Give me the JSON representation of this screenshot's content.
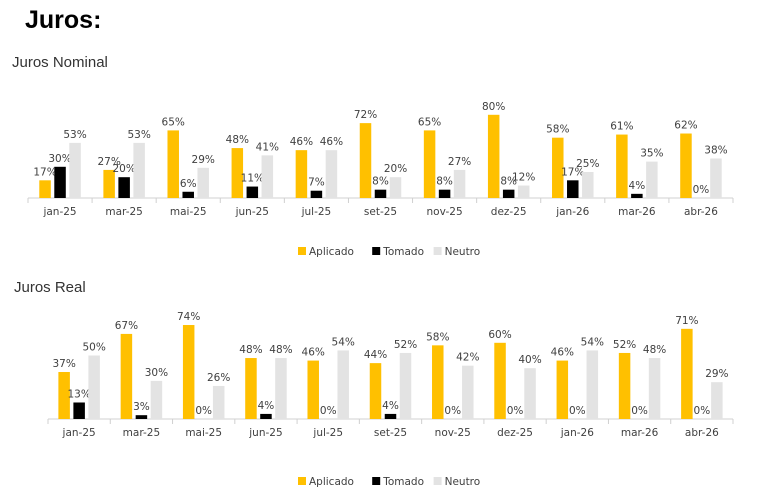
{
  "page_title": "Juros:",
  "colors": {
    "Aplicado": "#FFC000",
    "Tomado": "#000000",
    "Neutro": "#E3E3E3"
  },
  "chart_data": [
    {
      "type": "bar",
      "title": "Juros Nominal",
      "categories": [
        "jan-25",
        "mar-25",
        "mai-25",
        "jun-25",
        "jul-25",
        "set-25",
        "nov-25",
        "dez-25",
        "jan-26",
        "mar-26",
        "abr-26"
      ],
      "series": [
        {
          "name": "Aplicado",
          "values": [
            17,
            27,
            65,
            48,
            46,
            72,
            65,
            80,
            58,
            61,
            62
          ]
        },
        {
          "name": "Tomado",
          "values": [
            30,
            20,
            6,
            11,
            7,
            8,
            8,
            8,
            17,
            4,
            0
          ]
        },
        {
          "name": "Neutro",
          "values": [
            53,
            53,
            29,
            41,
            46,
            20,
            27,
            12,
            25,
            35,
            38
          ]
        }
      ],
      "unit": "%",
      "legend": "bottom-center",
      "grid": false
    },
    {
      "type": "bar",
      "title": "Juros Real",
      "categories": [
        "jan-25",
        "mar-25",
        "mai-25",
        "jun-25",
        "jul-25",
        "set-25",
        "nov-25",
        "dez-25",
        "jan-26",
        "mar-26",
        "abr-26"
      ],
      "series": [
        {
          "name": "Aplicado",
          "values": [
            37,
            67,
            74,
            48,
            46,
            44,
            58,
            60,
            46,
            52,
            71
          ]
        },
        {
          "name": "Tomado",
          "values": [
            13,
            3,
            0,
            4,
            0,
            4,
            0,
            0,
            0,
            0,
            0
          ]
        },
        {
          "name": "Neutro",
          "values": [
            50,
            30,
            26,
            48,
            54,
            52,
            42,
            40,
            54,
            48,
            29
          ]
        }
      ],
      "unit": "%",
      "legend": "bottom-center",
      "grid": false
    }
  ]
}
